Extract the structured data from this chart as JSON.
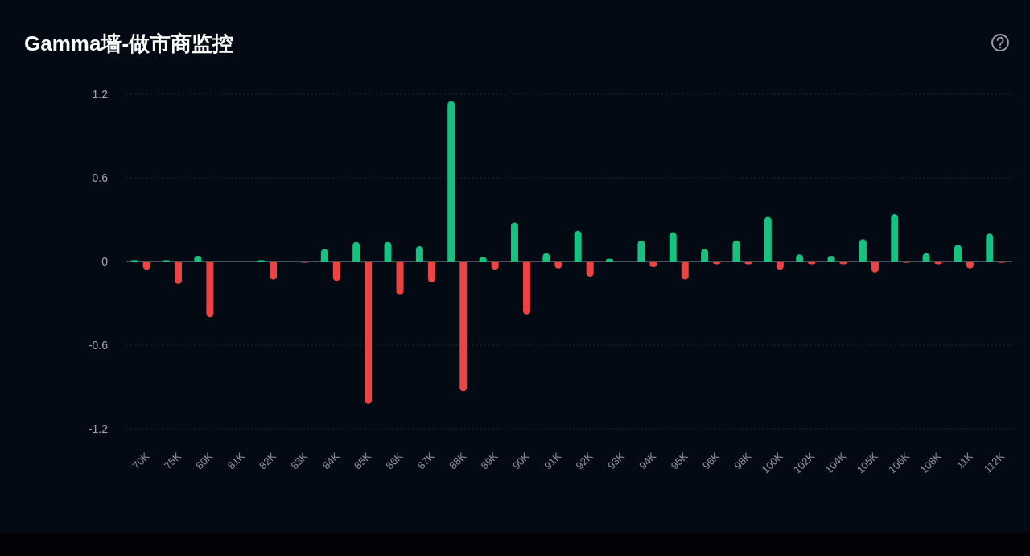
{
  "chart_data": {
    "type": "bar",
    "title": "Gamma墙-做市商监控",
    "categories": [
      "70K",
      "75K",
      "80K",
      "81K",
      "82K",
      "83K",
      "84K",
      "85K",
      "86K",
      "87K",
      "88K",
      "89K",
      "90K",
      "91K",
      "92K",
      "93K",
      "94K",
      "95K",
      "96K",
      "98K",
      "100K",
      "102K",
      "104K",
      "105K",
      "106K",
      "108K",
      "11K",
      "112K"
    ],
    "series": [
      {
        "color": "#17c17f",
        "values": [
          0.01,
          0.01,
          0.04,
          0,
          0.01,
          0,
          0.09,
          0.14,
          0.14,
          0.11,
          1.15,
          0.03,
          0.28,
          0.06,
          0.22,
          0.02,
          0.15,
          0.21,
          0.09,
          0.15,
          0.32,
          0.05,
          0.04,
          0.16,
          0.34,
          0.06,
          0.12,
          0.2
        ]
      },
      {
        "color": "#ec4444",
        "values": [
          -0.06,
          -0.16,
          -0.4,
          0,
          -0.13,
          -0.01,
          -0.14,
          -1.02,
          -0.24,
          -0.15,
          -0.93,
          -0.06,
          -0.38,
          -0.05,
          -0.11,
          0,
          -0.04,
          -0.13,
          -0.02,
          -0.02,
          -0.06,
          -0.02,
          -0.02,
          -0.08,
          -0.01,
          -0.02,
          -0.05,
          -0.01
        ]
      }
    ],
    "ylim": [
      -1.2,
      1.2
    ],
    "yticks": [
      -1.2,
      -0.6,
      0,
      0.6,
      1.2
    ],
    "grid": "y"
  }
}
